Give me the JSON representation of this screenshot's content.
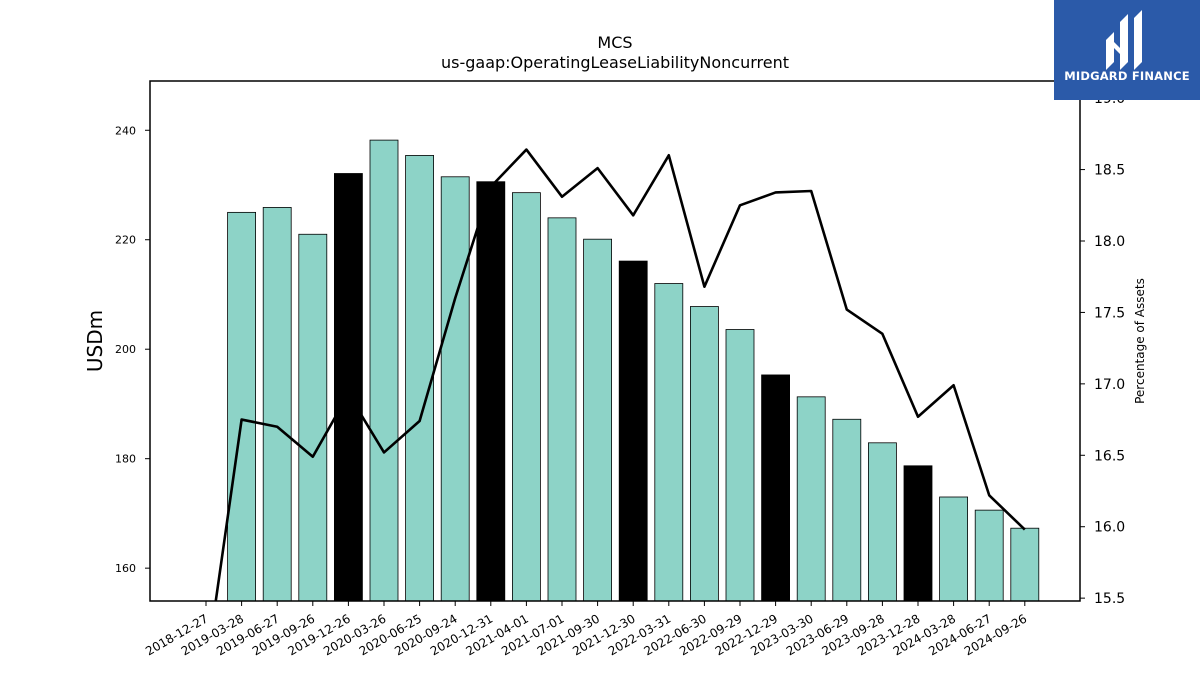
{
  "chart_data": {
    "type": "bar",
    "title": "MCS",
    "subtitle": "us-gaap:OperatingLeaseLiabilityNoncurrent",
    "ylabel": "USDm",
    "y2label": "Percentage of Assets",
    "ylim": [
      154,
      249
    ],
    "y2lim": [
      15.48,
      19.12
    ],
    "yticks": [
      160,
      180,
      200,
      220,
      240
    ],
    "y2ticks": [
      15.5,
      16.0,
      16.5,
      17.0,
      17.5,
      18.0,
      18.5,
      19.0
    ],
    "categories": [
      "2018-12-27",
      "2019-03-28",
      "2019-06-27",
      "2019-09-26",
      "2019-12-26",
      "2020-03-26",
      "2020-06-25",
      "2020-09-24",
      "2020-12-31",
      "2021-04-01",
      "2021-07-01",
      "2021-09-30",
      "2021-12-30",
      "2022-03-31",
      "2022-06-30",
      "2022-09-29",
      "2022-12-29",
      "2023-03-30",
      "2023-06-29",
      "2023-09-28",
      "2023-12-28",
      "2024-03-28",
      "2024-06-27",
      "2024-09-26"
    ],
    "series": [
      {
        "type": "bar",
        "values": [
          null,
          225.0,
          225.9,
          221.0,
          232.1,
          238.2,
          235.4,
          231.5,
          230.6,
          228.6,
          224.0,
          220.1,
          216.1,
          212.0,
          207.8,
          203.6,
          195.3,
          191.3,
          187.2,
          182.9,
          178.7,
          173.0,
          170.6,
          167.3
        ],
        "highlight": [
          false,
          false,
          false,
          false,
          true,
          false,
          false,
          false,
          true,
          false,
          false,
          false,
          true,
          false,
          false,
          false,
          true,
          false,
          false,
          false,
          true,
          false,
          false,
          false
        ],
        "color": "#8dd3c7",
        "highlight_color": "#000000"
      },
      {
        "type": "line",
        "axis": "right",
        "values": [
          15.0,
          16.75,
          16.7,
          16.49,
          16.93,
          16.52,
          16.74,
          17.6,
          18.38,
          18.64,
          18.31,
          18.51,
          18.18,
          18.6,
          17.68,
          18.25,
          18.34,
          18.35,
          17.52,
          17.35,
          16.77,
          16.99,
          16.22,
          15.98
        ],
        "color": "#000000"
      }
    ]
  },
  "logo": {
    "text": "MIDGARD FINANCE",
    "background": "#2b5aa9"
  }
}
